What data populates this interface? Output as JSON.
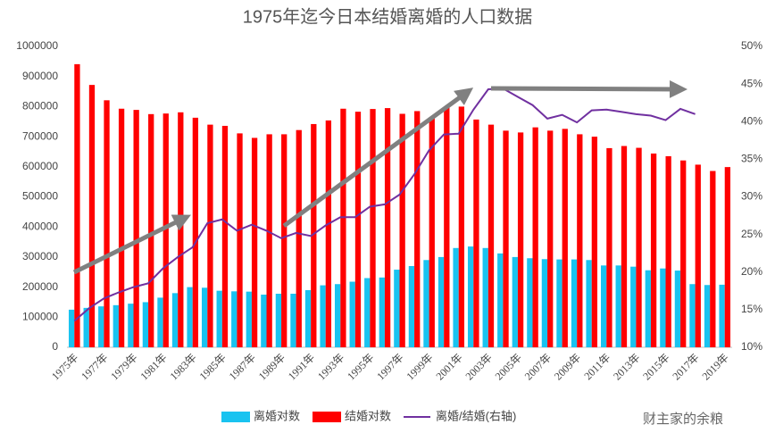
{
  "chart_data": {
    "type": "bar_line",
    "title": "1975年迄今日本结婚离婚的人口数据",
    "categories": [
      "1975年",
      null,
      "1977年",
      null,
      "1979年",
      null,
      "1981年",
      null,
      "1983年",
      null,
      "1985年",
      null,
      "1987年",
      null,
      "1989年",
      null,
      "1991年",
      null,
      "1993年",
      null,
      "1995年",
      null,
      "1997年",
      null,
      "1999年",
      null,
      "2001年",
      null,
      "2003年",
      null,
      "2005年",
      null,
      "2007年",
      null,
      "2009年",
      null,
      "2011年",
      null,
      "2013年",
      null,
      "2015年",
      null,
      "2017年",
      null,
      "2019年"
    ],
    "series": [
      {
        "name": "离婚对数",
        "color": "#19c3f0",
        "values": [
          125000,
          131000,
          136000,
          140000,
          145000,
          150000,
          165000,
          180000,
          200000,
          198000,
          188000,
          186000,
          185000,
          175000,
          178000,
          178000,
          190000,
          206000,
          210000,
          218000,
          230000,
          232000,
          258000,
          270000,
          290000,
          300000,
          330000,
          335000,
          330000,
          312000,
          300000,
          296000,
          293000,
          292000,
          292000,
          290000,
          272000,
          272000,
          268000,
          256000,
          262000,
          255000,
          210000,
          207000,
          208000
        ]
      },
      {
        "name": "结婚对数",
        "color": "#ff0000",
        "values": [
          941000,
          872000,
          821000,
          793000,
          789000,
          775000,
          777000,
          781000,
          763000,
          740000,
          736000,
          711000,
          696000,
          708000,
          708000,
          722000,
          742000,
          754000,
          793000,
          783000,
          792000,
          795000,
          776000,
          785000,
          762000,
          798000,
          800000,
          757000,
          740000,
          720000,
          714000,
          731000,
          720000,
          726000,
          708000,
          700000,
          662000,
          669000,
          663000,
          644000,
          635000,
          621000,
          607000,
          586000,
          599000
        ]
      },
      {
        "name": "离婚/结婚(右轴)",
        "color": "#7030a0",
        "axis": "y2",
        "values": [
          13.5,
          15.2,
          16.5,
          17.3,
          18.0,
          18.5,
          20.5,
          22.0,
          23.3,
          26.5,
          27.0,
          25.5,
          26.3,
          25.5,
          24.5,
          25.2,
          24.8,
          26.2,
          27.3,
          27.3,
          28.7,
          29.0,
          30.3,
          33.0,
          36.2,
          38.3,
          38.4,
          41.6,
          44.3,
          44.4,
          43.3,
          42.2,
          40.4,
          40.9,
          39.9,
          41.5,
          41.6,
          41.3,
          41.0,
          40.8,
          40.2,
          41.7,
          41.0,
          null,
          null
        ]
      }
    ],
    "ylim": [
      0,
      1000000
    ],
    "yticks": [
      0,
      100000,
      200000,
      300000,
      400000,
      500000,
      600000,
      700000,
      800000,
      900000,
      1000000
    ],
    "y2lim": [
      10,
      50
    ],
    "y2ticks": [
      {
        "value": 10,
        "label": "10%"
      },
      {
        "value": 15,
        "label": "15%"
      },
      {
        "value": 20,
        "label": "20%"
      },
      {
        "value": 25,
        "label": "25%"
      },
      {
        "value": 30,
        "label": "30%"
      },
      {
        "value": 35,
        "label": "35%"
      },
      {
        "value": 40,
        "label": "40%"
      },
      {
        "value": 45,
        "label": "45%"
      },
      {
        "value": 50,
        "label": "50%"
      }
    ],
    "legend": "bottom",
    "watermark": "财主家的余粮"
  }
}
